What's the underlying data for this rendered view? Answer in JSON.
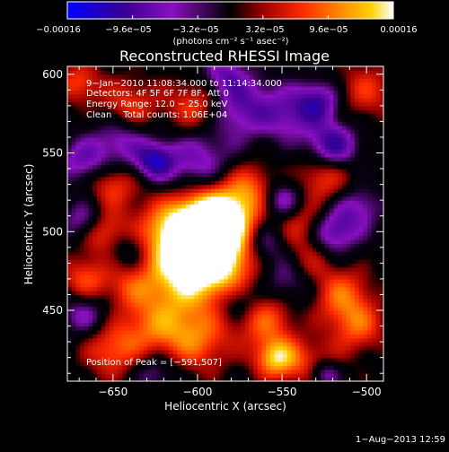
{
  "chart_data": {
    "type": "heatmap",
    "title": "Reconstructed RHESSI Image",
    "xlabel": "Heliocentric X (arcsec)",
    "ylabel": "Heliocentric Y (arcsec)",
    "xlim": [
      -677,
      -490
    ],
    "ylim": [
      405,
      605
    ],
    "x_ticks": [
      -650,
      -600,
      -550,
      -500
    ],
    "x_tick_labels": [
      "−650",
      "−600",
      "−550",
      "−500"
    ],
    "y_ticks": [
      450,
      500,
      550,
      600
    ],
    "y_tick_labels": [
      "450",
      "500",
      "550",
      "600"
    ],
    "colorbar": {
      "range": [
        -0.00016,
        0.00016
      ],
      "tick_labels": [
        "−0.00016",
        "−9.6e−05",
        "−3.2e−05",
        "3.2e−05",
        "9.6e−05",
        "0.00016"
      ],
      "unit_label": "(photons cm⁻² s⁻¹ asec⁻²)",
      "colormap": [
        "#0000ff",
        "#3a0090",
        "#8a10c0",
        "#000000",
        "#9a0000",
        "#ff2a00",
        "#ff8c00",
        "#ffd000",
        "#ffffff"
      ]
    },
    "annotations": [
      "9−Jan−2010 11:08:34.000 to 11:14:34.000",
      "Detectors: 4F 5F 6F 7F 8F, Att 0",
      "Energy Range: 12.0 − 25.0 keV",
      "Clean    Total counts: 1.06E+04"
    ],
    "peak_label": "Position of Peak = [−591,507]",
    "peak": {
      "x": -591,
      "y": 507
    },
    "timestamp": "1−Aug−2013 12:59",
    "blobs": [
      {
        "x": -596,
        "y": 503,
        "v": 1.0,
        "s": 14
      },
      {
        "x": -600,
        "y": 490,
        "v": 0.75,
        "s": 18
      },
      {
        "x": -582,
        "y": 510,
        "v": 0.7,
        "s": 14
      },
      {
        "x": -610,
        "y": 470,
        "v": 0.6,
        "s": 16
      },
      {
        "x": -585,
        "y": 478,
        "v": 0.55,
        "s": 14
      },
      {
        "x": -620,
        "y": 500,
        "v": 0.45,
        "s": 14
      },
      {
        "x": -560,
        "y": 445,
        "v": 0.55,
        "s": 12
      },
      {
        "x": -553,
        "y": 420,
        "v": 0.85,
        "s": 9
      },
      {
        "x": -600,
        "y": 432,
        "v": 0.55,
        "s": 14
      },
      {
        "x": -625,
        "y": 440,
        "v": 0.5,
        "s": 14
      },
      {
        "x": -650,
        "y": 425,
        "v": 0.5,
        "s": 12
      },
      {
        "x": -666,
        "y": 470,
        "v": 0.5,
        "s": 10
      },
      {
        "x": -655,
        "y": 500,
        "v": 0.55,
        "s": 10
      },
      {
        "x": -650,
        "y": 530,
        "v": 0.45,
        "s": 10
      },
      {
        "x": -640,
        "y": 580,
        "v": 0.45,
        "s": 12
      },
      {
        "x": -600,
        "y": 580,
        "v": 0.5,
        "s": 12
      },
      {
        "x": -568,
        "y": 528,
        "v": 0.45,
        "s": 11
      },
      {
        "x": -540,
        "y": 505,
        "v": 0.45,
        "s": 12
      },
      {
        "x": -525,
        "y": 535,
        "v": 0.45,
        "s": 11
      },
      {
        "x": -515,
        "y": 460,
        "v": 0.55,
        "s": 12
      },
      {
        "x": -505,
        "y": 440,
        "v": 0.5,
        "s": 11
      },
      {
        "x": -530,
        "y": 415,
        "v": 0.45,
        "s": 11
      },
      {
        "x": -500,
        "y": 590,
        "v": 0.4,
        "s": 12
      },
      {
        "x": -670,
        "y": 595,
        "v": 0.45,
        "s": 9
      },
      {
        "x": -535,
        "y": 480,
        "v": 0.35,
        "s": 10
      },
      {
        "x": -640,
        "y": 465,
        "v": 0.35,
        "s": 10
      },
      {
        "x": -625,
        "y": 545,
        "v": -0.7,
        "s": 8
      },
      {
        "x": -600,
        "y": 545,
        "v": -0.45,
        "s": 14
      },
      {
        "x": -645,
        "y": 558,
        "v": -0.45,
        "s": 12
      },
      {
        "x": -575,
        "y": 580,
        "v": -0.55,
        "s": 14
      },
      {
        "x": -545,
        "y": 575,
        "v": -0.45,
        "s": 12
      },
      {
        "x": -520,
        "y": 555,
        "v": -0.7,
        "s": 10
      },
      {
        "x": -528,
        "y": 583,
        "v": -0.55,
        "s": 9
      },
      {
        "x": -550,
        "y": 520,
        "v": -0.6,
        "s": 9
      },
      {
        "x": -520,
        "y": 500,
        "v": -0.6,
        "s": 10
      },
      {
        "x": -560,
        "y": 495,
        "v": -0.45,
        "s": 10
      },
      {
        "x": -545,
        "y": 470,
        "v": -0.4,
        "s": 12
      },
      {
        "x": -667,
        "y": 507,
        "v": -0.45,
        "s": 9
      },
      {
        "x": -668,
        "y": 545,
        "v": -0.45,
        "s": 10
      },
      {
        "x": -667,
        "y": 448,
        "v": -0.4,
        "s": 10
      },
      {
        "x": -525,
        "y": 410,
        "v": -0.65,
        "s": 7
      },
      {
        "x": -640,
        "y": 490,
        "v": -0.35,
        "s": 10
      },
      {
        "x": -575,
        "y": 455,
        "v": -0.35,
        "s": 9
      },
      {
        "x": -505,
        "y": 515,
        "v": -0.4,
        "s": 10
      },
      {
        "x": -585,
        "y": 600,
        "v": -0.4,
        "s": 9
      },
      {
        "x": -625,
        "y": 412,
        "v": -0.35,
        "s": 10
      }
    ]
  }
}
